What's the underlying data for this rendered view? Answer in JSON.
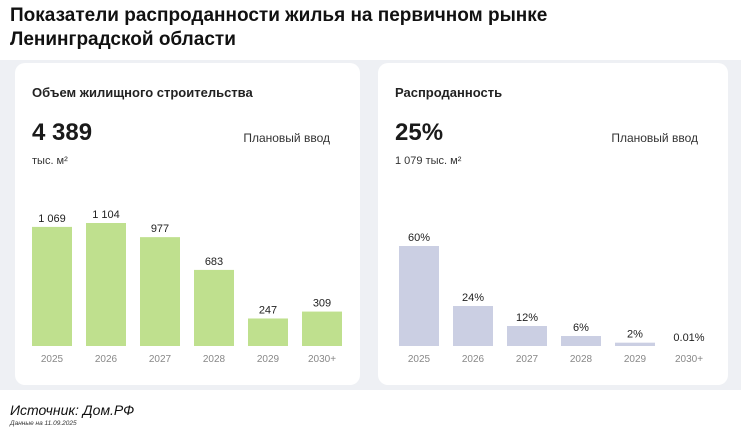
{
  "page": {
    "title": "Показатели распроданности жилья на первичном рынке Ленинградской области",
    "source": "Источник: Дом.РФ",
    "source_date": "Данные на 11.09.2025"
  },
  "colors": {
    "left_bar": "#bfe08e",
    "right_bar": "#cbcfe3",
    "panel": "#eef0f4"
  },
  "left_card": {
    "title": "Объем жилищного строительства",
    "big_value": "4 389",
    "unit": "тыс. м²",
    "plan_label": "Плановый ввод"
  },
  "right_card": {
    "title": "Распроданность",
    "big_value": "25%",
    "unit": "1 079 тыс. м²",
    "plan_label": "Плановый ввод"
  },
  "chart_data": [
    {
      "type": "bar",
      "title": "Объем жилищного строительства",
      "categories": [
        "2025",
        "2026",
        "2027",
        "2028",
        "2029",
        "2030+"
      ],
      "values": [
        1069,
        1104,
        977,
        683,
        247,
        309
      ],
      "labels": [
        "1 069",
        "1 104",
        "977",
        "683",
        "247",
        "309"
      ],
      "ylim": [
        0,
        1104
      ],
      "grid": false
    },
    {
      "type": "bar",
      "title": "Распроданность",
      "categories": [
        "2025",
        "2026",
        "2027",
        "2028",
        "2029",
        "2030+"
      ],
      "values": [
        60,
        24,
        12,
        6,
        2,
        0.01
      ],
      "labels": [
        "60%",
        "24%",
        "12%",
        "6%",
        "2%",
        "0.01%"
      ],
      "ylim": [
        0,
        60
      ],
      "grid": false
    }
  ]
}
